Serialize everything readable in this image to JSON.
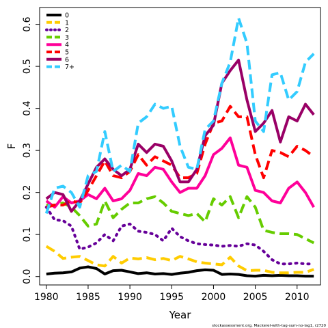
{
  "chart_data": {
    "type": "line",
    "xlabel": "Year",
    "ylabel": "F",
    "xlim": [
      1979.2,
      2012.8
    ],
    "ylim": [
      -0.02,
      0.64
    ],
    "x_ticks": [
      1980,
      1985,
      1990,
      1995,
      2000,
      2005,
      2010
    ],
    "y_ticks": [
      0.0,
      0.1,
      0.2,
      0.3,
      0.4,
      0.5,
      0.6
    ],
    "y_tick_labels": [
      "0.0",
      "0.1",
      "0.2",
      "0.3",
      "0.4",
      "0.5",
      "0.6"
    ],
    "legend_position": "top-left",
    "footer": "stockassessment.org, Mackerel-with-tag-sum-no-lag1, r2720",
    "x": [
      1980,
      1981,
      1982,
      1983,
      1984,
      1985,
      1986,
      1987,
      1988,
      1989,
      1990,
      1991,
      1992,
      1993,
      1994,
      1995,
      1996,
      1997,
      1998,
      1999,
      2000,
      2001,
      2002,
      2003,
      2004,
      2005,
      2006,
      2007,
      2008,
      2009,
      2010,
      2011,
      2012
    ],
    "series": [
      {
        "name": "0",
        "color": "#000000",
        "dash": "solid",
        "values": [
          0.006,
          0.008,
          0.009,
          0.011,
          0.02,
          0.023,
          0.019,
          0.006,
          0.014,
          0.015,
          0.011,
          0.007,
          0.009,
          0.006,
          0.007,
          0.005,
          0.008,
          0.01,
          0.014,
          0.016,
          0.015,
          0.005,
          0.006,
          0.005,
          0.002,
          0.001,
          0.003,
          0.002,
          0.003,
          0.002,
          0.002,
          0.001,
          0.001
        ]
      },
      {
        "name": "1",
        "color": "#ffcc00",
        "dash": "dashed",
        "values": [
          0.072,
          0.06,
          0.043,
          0.046,
          0.048,
          0.038,
          0.028,
          0.025,
          0.048,
          0.032,
          0.044,
          0.042,
          0.045,
          0.04,
          0.043,
          0.038,
          0.048,
          0.042,
          0.035,
          0.032,
          0.03,
          0.028,
          0.046,
          0.025,
          0.014,
          0.015,
          0.015,
          0.01,
          0.009,
          0.009,
          0.01,
          0.01,
          0.017
        ]
      },
      {
        "name": "2",
        "color": "#660099",
        "dash": "dotted",
        "values": [
          0.165,
          0.135,
          0.133,
          0.12,
          0.065,
          0.07,
          0.08,
          0.1,
          0.085,
          0.12,
          0.125,
          0.108,
          0.105,
          0.1,
          0.085,
          0.115,
          0.095,
          0.085,
          0.078,
          0.076,
          0.075,
          0.072,
          0.074,
          0.072,
          0.078,
          0.075,
          0.06,
          0.04,
          0.03,
          0.03,
          0.032,
          0.03,
          0.03
        ]
      },
      {
        "name": "3",
        "color": "#66cc00",
        "dash": "dashed",
        "values": [
          0.17,
          0.17,
          0.175,
          0.165,
          0.145,
          0.12,
          0.125,
          0.18,
          0.14,
          0.16,
          0.175,
          0.175,
          0.185,
          0.19,
          0.175,
          0.155,
          0.15,
          0.145,
          0.15,
          0.13,
          0.185,
          0.17,
          0.19,
          0.14,
          0.19,
          0.165,
          0.11,
          0.105,
          0.102,
          0.102,
          0.1,
          0.09,
          0.08
        ]
      },
      {
        "name": "4",
        "color": "#ff0099",
        "dash": "solid",
        "values": [
          0.18,
          0.165,
          0.19,
          0.175,
          0.18,
          0.195,
          0.185,
          0.21,
          0.18,
          0.185,
          0.205,
          0.245,
          0.24,
          0.26,
          0.255,
          0.225,
          0.2,
          0.21,
          0.21,
          0.24,
          0.29,
          0.305,
          0.33,
          0.265,
          0.26,
          0.205,
          0.2,
          0.18,
          0.175,
          0.21,
          0.225,
          0.2,
          0.165
        ]
      },
      {
        "name": "5",
        "color": "#ff0000",
        "dash": "dashed",
        "values": [
          0.165,
          0.17,
          0.17,
          0.18,
          0.175,
          0.205,
          0.24,
          0.275,
          0.24,
          0.235,
          0.25,
          0.29,
          0.265,
          0.285,
          0.275,
          0.265,
          0.235,
          0.235,
          0.245,
          0.315,
          0.365,
          0.37,
          0.405,
          0.38,
          0.38,
          0.29,
          0.235,
          0.3,
          0.295,
          0.285,
          0.31,
          0.3,
          0.285
        ]
      },
      {
        "name": "6",
        "color": "#990066",
        "dash": "solid",
        "values": [
          0.185,
          0.2,
          0.195,
          0.155,
          0.18,
          0.22,
          0.26,
          0.28,
          0.255,
          0.24,
          0.255,
          0.315,
          0.295,
          0.315,
          0.31,
          0.275,
          0.225,
          0.225,
          0.255,
          0.335,
          0.36,
          0.46,
          0.49,
          0.515,
          0.42,
          0.345,
          0.365,
          0.395,
          0.32,
          0.38,
          0.37,
          0.41,
          0.385
        ]
      },
      {
        "name": "7+",
        "color": "#33ccff",
        "dash": "dashed",
        "values": [
          0.15,
          0.21,
          0.215,
          0.2,
          0.165,
          0.24,
          0.25,
          0.345,
          0.25,
          0.265,
          0.25,
          0.365,
          0.38,
          0.41,
          0.4,
          0.405,
          0.31,
          0.26,
          0.255,
          0.35,
          0.37,
          0.46,
          0.51,
          0.615,
          0.555,
          0.37,
          0.345,
          0.48,
          0.485,
          0.42,
          0.44,
          0.51,
          0.53
        ]
      }
    ]
  }
}
